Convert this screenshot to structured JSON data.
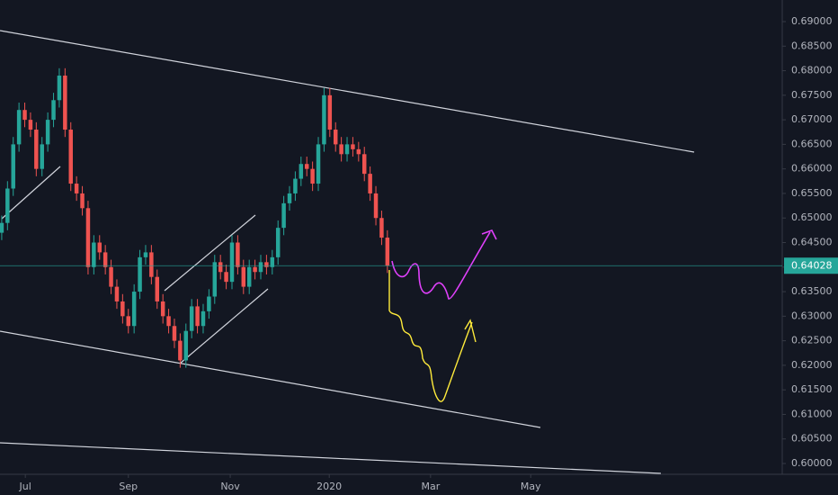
{
  "chart_data": {
    "type": "candlestick",
    "up_color": "#26a69a",
    "down_color": "#ef5350",
    "last_price_color": "#26a69a",
    "open": [
      0.647,
      0.649,
      0.656,
      0.665,
      0.672,
      0.67,
      0.668,
      0.66,
      0.665,
      0.67,
      0.674,
      0.679,
      0.668,
      0.657,
      0.655,
      0.652,
      0.64,
      0.645,
      0.643,
      0.64,
      0.636,
      0.633,
      0.63,
      0.628,
      0.635,
      0.642,
      0.643,
      0.638,
      0.633,
      0.63,
      0.628,
      0.625,
      0.621,
      0.627,
      0.632,
      0.628,
      0.631,
      0.634,
      0.641,
      0.639,
      0.637,
      0.645,
      0.64,
      0.636,
      0.64,
      0.639,
      0.641,
      0.64,
      0.642,
      0.648,
      0.653,
      0.655,
      0.658,
      0.661,
      0.66,
      0.657,
      0.665,
      0.675,
      0.668,
      0.665,
      0.663,
      0.665,
      0.664,
      0.663,
      0.659,
      0.655,
      0.65,
      0.646
    ],
    "high": [
      0.6505,
      0.6575,
      0.6665,
      0.6735,
      0.6735,
      0.6715,
      0.6695,
      0.6665,
      0.6715,
      0.6755,
      0.6805,
      0.6805,
      0.6695,
      0.6585,
      0.6565,
      0.6535,
      0.6465,
      0.6465,
      0.6445,
      0.6415,
      0.6375,
      0.6345,
      0.6315,
      0.6365,
      0.6435,
      0.6445,
      0.6445,
      0.6395,
      0.6345,
      0.6315,
      0.6295,
      0.6265,
      0.6285,
      0.6335,
      0.6335,
      0.6325,
      0.6355,
      0.6425,
      0.6425,
      0.6405,
      0.6465,
      0.6465,
      0.6415,
      0.6415,
      0.6415,
      0.6425,
      0.6425,
      0.6435,
      0.6495,
      0.6545,
      0.6565,
      0.6595,
      0.6625,
      0.6625,
      0.6615,
      0.6665,
      0.6765,
      0.6765,
      0.6695,
      0.6665,
      0.6665,
      0.6665,
      0.6655,
      0.6645,
      0.6605,
      0.6565,
      0.6515,
      0.6475
    ],
    "low": [
      0.6455,
      0.6475,
      0.6545,
      0.6635,
      0.6685,
      0.6665,
      0.6585,
      0.6585,
      0.6635,
      0.6685,
      0.6725,
      0.6665,
      0.6555,
      0.6535,
      0.6505,
      0.6385,
      0.6385,
      0.6415,
      0.6385,
      0.6345,
      0.6315,
      0.6285,
      0.6265,
      0.6265,
      0.6335,
      0.6405,
      0.6365,
      0.6315,
      0.6285,
      0.6265,
      0.6235,
      0.6195,
      0.6195,
      0.6255,
      0.6265,
      0.6265,
      0.6295,
      0.6325,
      0.6375,
      0.6355,
      0.6355,
      0.6385,
      0.6345,
      0.6345,
      0.6375,
      0.6375,
      0.6385,
      0.6385,
      0.6405,
      0.6465,
      0.6515,
      0.6535,
      0.6565,
      0.6585,
      0.6555,
      0.6555,
      0.6635,
      0.6665,
      0.6635,
      0.6615,
      0.6615,
      0.6625,
      0.6615,
      0.6575,
      0.6535,
      0.6485,
      0.6445,
      0.6388
    ],
    "close": [
      0.649,
      0.656,
      0.665,
      0.672,
      0.67,
      0.668,
      0.66,
      0.665,
      0.67,
      0.674,
      0.679,
      0.668,
      0.657,
      0.655,
      0.652,
      0.64,
      0.645,
      0.643,
      0.64,
      0.636,
      0.633,
      0.63,
      0.628,
      0.635,
      0.642,
      0.643,
      0.638,
      0.633,
      0.63,
      0.628,
      0.625,
      0.621,
      0.627,
      0.632,
      0.628,
      0.631,
      0.634,
      0.641,
      0.639,
      0.637,
      0.645,
      0.64,
      0.636,
      0.64,
      0.639,
      0.641,
      0.64,
      0.642,
      0.648,
      0.653,
      0.655,
      0.658,
      0.661,
      0.66,
      0.657,
      0.665,
      0.675,
      0.668,
      0.665,
      0.663,
      0.665,
      0.664,
      0.663,
      0.659,
      0.655,
      0.65,
      0.646,
      0.6403
    ],
    "last_price": 0.64028,
    "xlim": [
      -0.3,
      135.6
    ],
    "xticks": [
      {
        "value": 4.1,
        "label": "Jul"
      },
      {
        "value": 22.0,
        "label": "Sep"
      },
      {
        "value": 39.7,
        "label": "Nov"
      },
      {
        "value": 56.9,
        "label": "2020"
      },
      {
        "value": 74.5,
        "label": "Mar"
      },
      {
        "value": 91.9,
        "label": "May"
      }
    ],
    "ylim": [
      0.5978,
      0.6944
    ],
    "yticks": [
      {
        "value": 0.6,
        "label": "0.60000"
      },
      {
        "value": 0.605,
        "label": "0.60500"
      },
      {
        "value": 0.61,
        "label": "0.61000"
      },
      {
        "value": 0.615,
        "label": "0.61500"
      },
      {
        "value": 0.62,
        "label": "0.62000"
      },
      {
        "value": 0.625,
        "label": "0.62500"
      },
      {
        "value": 0.63,
        "label": "0.63000"
      },
      {
        "value": 0.635,
        "label": "0.63500"
      },
      {
        "value": 0.64,
        "label": "0.64000"
      },
      {
        "value": 0.645,
        "label": "0.64500"
      },
      {
        "value": 0.65,
        "label": "0.65000"
      },
      {
        "value": 0.655,
        "label": "0.65500"
      },
      {
        "value": 0.66,
        "label": "0.66000"
      },
      {
        "value": 0.665,
        "label": "0.66500"
      },
      {
        "value": 0.67,
        "label": "0.67000"
      },
      {
        "value": 0.675,
        "label": "0.67500"
      },
      {
        "value": 0.68,
        "label": "0.68000"
      },
      {
        "value": 0.685,
        "label": "0.68500"
      },
      {
        "value": 0.69,
        "label": "0.69000"
      }
    ]
  }
}
